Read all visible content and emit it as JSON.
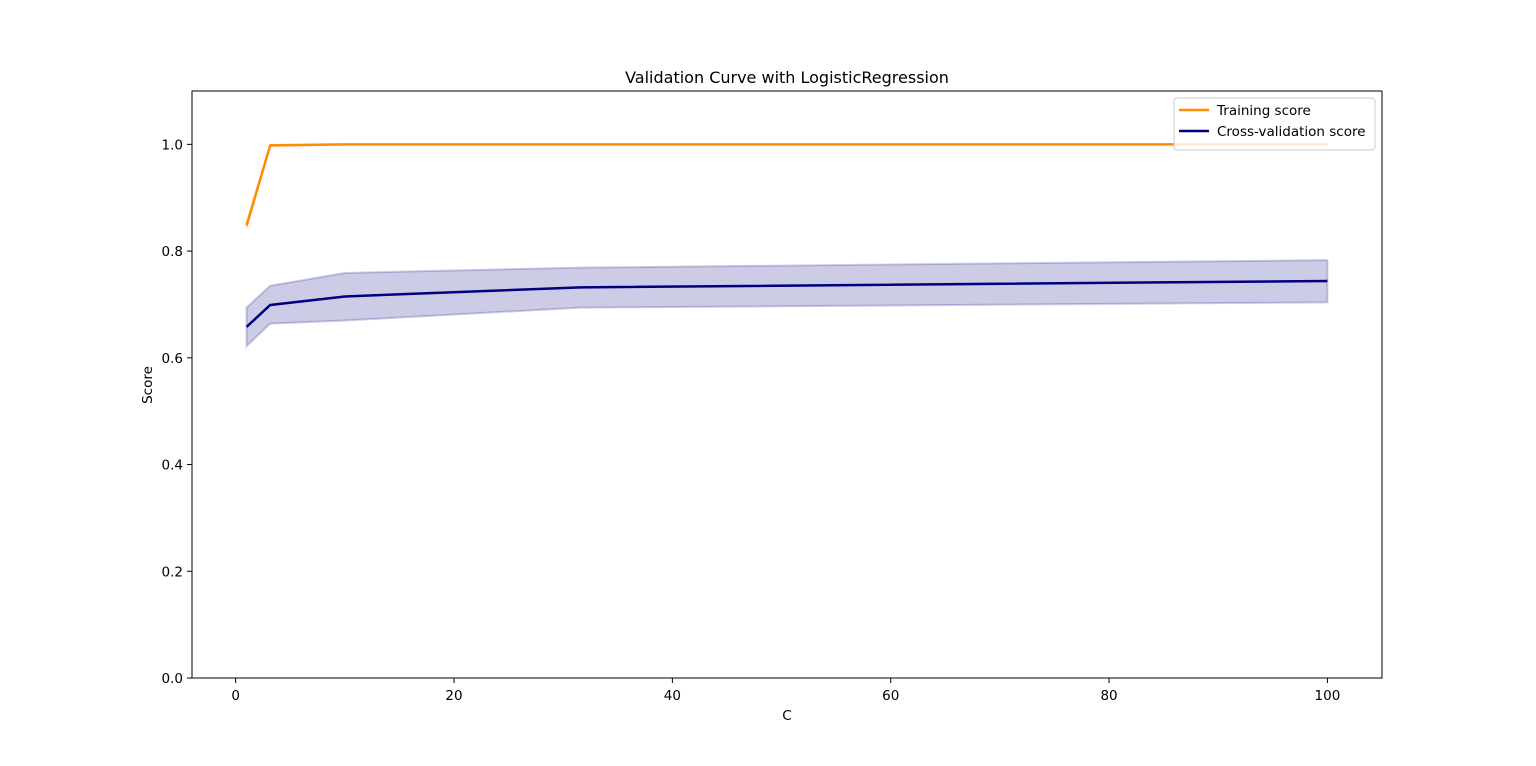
{
  "chart_data": {
    "type": "line",
    "title": "Validation Curve with LogisticRegression",
    "xlabel": "C",
    "ylabel": "Score",
    "xlim": [
      -4.0,
      105.0
    ],
    "ylim": [
      0.0,
      1.1
    ],
    "xticks": [
      0,
      20,
      40,
      60,
      80,
      100
    ],
    "xtick_labels": [
      "0",
      "20",
      "40",
      "60",
      "80",
      "100"
    ],
    "yticks": [
      0.0,
      0.2,
      0.4,
      0.6,
      0.8,
      1.0
    ],
    "ytick_labels": [
      "0.0",
      "0.2",
      "0.4",
      "0.6",
      "0.8",
      "1.0"
    ],
    "grid": false,
    "legend_position": "top-right",
    "x": [
      1.0,
      3.16,
      10.0,
      31.6,
      100.0
    ],
    "series": [
      {
        "name": "Training score",
        "color": "#ff8c00",
        "values": [
          0.848,
          0.998,
          1.0,
          1.0,
          1.0
        ],
        "band_lower": [
          0.843,
          0.997,
          1.0,
          1.0,
          1.0
        ],
        "band_upper": [
          0.853,
          0.999,
          1.0,
          1.0,
          1.0
        ]
      },
      {
        "name": "Cross-validation score",
        "color": "#000080",
        "values": [
          0.658,
          0.699,
          0.715,
          0.732,
          0.744
        ],
        "band_lower": [
          0.622,
          0.664,
          0.67,
          0.694,
          0.704
        ],
        "band_upper": [
          0.694,
          0.735,
          0.759,
          0.769,
          0.783
        ]
      }
    ]
  }
}
